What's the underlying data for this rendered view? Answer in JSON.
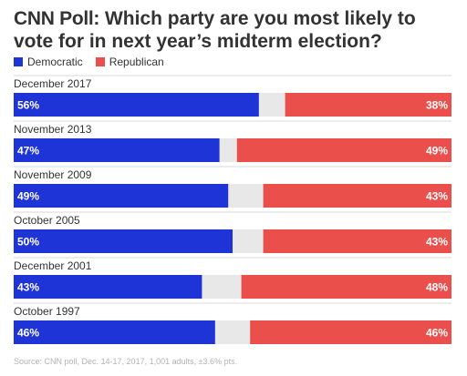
{
  "title": {
    "brand": "CNN Poll:",
    "question": "Which party are you most likely to vote for in next year’s midterm election?"
  },
  "legend": [
    {
      "label": "Democratic",
      "color": "#1f34d6"
    },
    {
      "label": "Republican",
      "color": "#ea4f4c"
    }
  ],
  "colors": {
    "democratic": "#1f34d6",
    "republican": "#ea4f4c",
    "other": "#e8e8e8"
  },
  "source": "Source: CNN poll, Dec. 14-17, 2017, 1,001 adults, ±3.6% pts.",
  "chart_data": {
    "type": "bar",
    "orientation": "horizontal-stacked",
    "categories": [
      "December 2017",
      "November 2013",
      "November 2009",
      "October 2005",
      "December 2001",
      "October 1997"
    ],
    "series": [
      {
        "name": "Democratic",
        "values": [
          56,
          47,
          49,
          50,
          43,
          46
        ]
      },
      {
        "name": "Republican",
        "values": [
          38,
          49,
          43,
          43,
          48,
          46
        ]
      }
    ],
    "value_labels": {
      "Democratic": [
        "56%",
        "47%",
        "49%",
        "50%",
        "43%",
        "46%"
      ],
      "Republican": [
        "38%",
        "49%",
        "43%",
        "43%",
        "48%",
        "46%"
      ]
    },
    "xlim": [
      0,
      100
    ],
    "legend_position": "top-left",
    "grid": false
  }
}
